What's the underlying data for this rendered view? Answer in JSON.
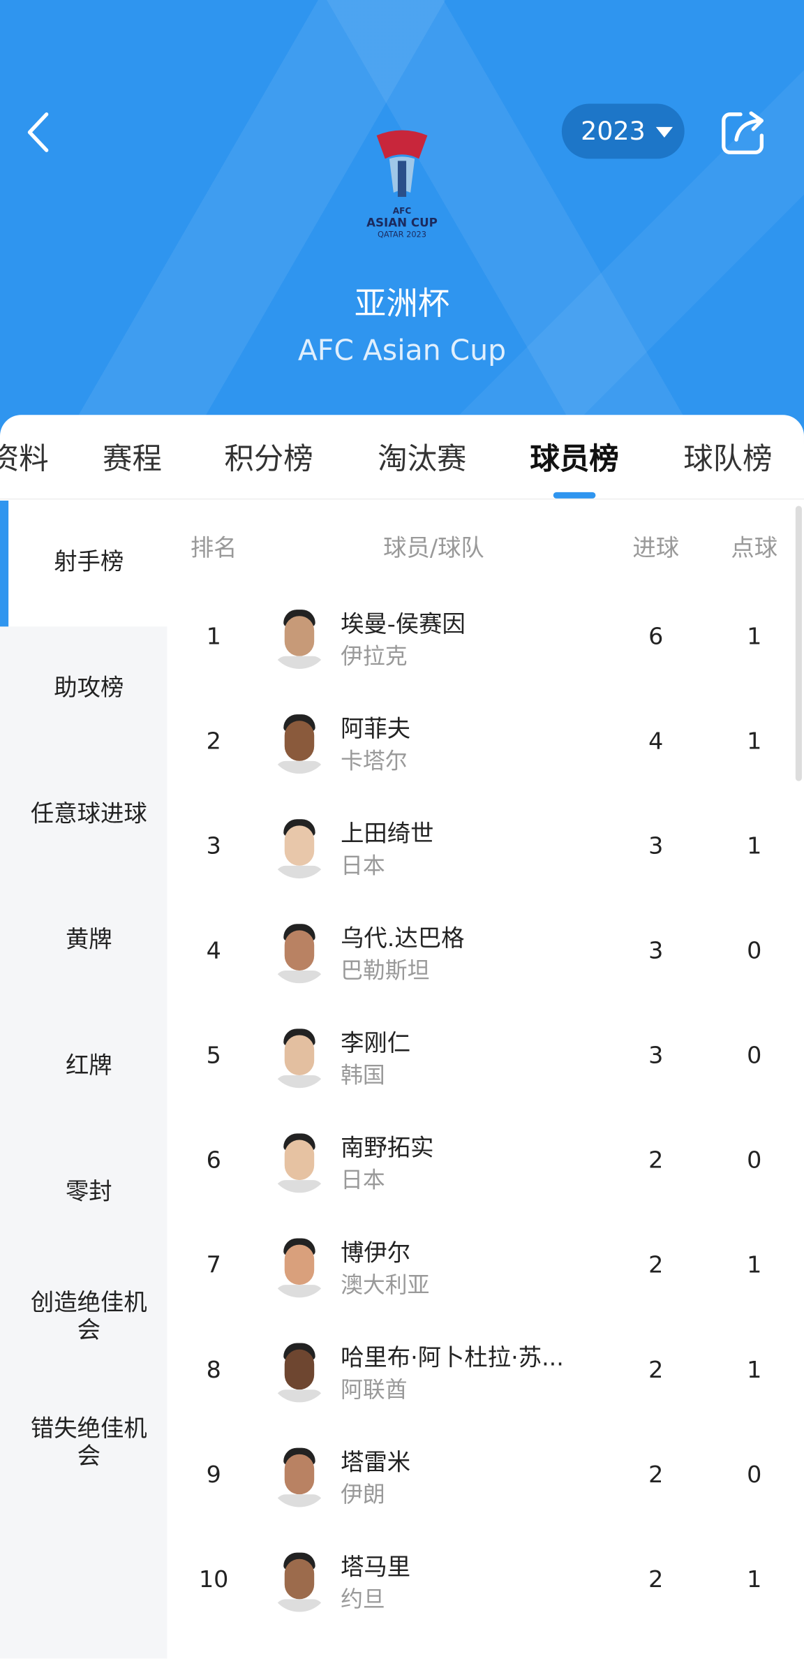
{
  "header": {
    "year": "2023",
    "logo": [
      "AFC",
      "ASIAN CUP",
      "QATAR 2023"
    ],
    "title": "亚洲杯",
    "subtitle": "AFC Asian Cup"
  },
  "tabs": {
    "items": [
      "资料",
      "赛程",
      "积分榜",
      "淘汰赛",
      "球员榜",
      "球队榜"
    ],
    "active": 4
  },
  "sidebar": {
    "items": [
      "射手榜",
      "助攻榜",
      "任意球进球",
      "黄牌",
      "红牌",
      "零封",
      "创造绝佳机会",
      "错失绝佳机会"
    ],
    "active": 0
  },
  "table": {
    "columns": [
      "排名",
      "球员/球队",
      "进球",
      "点球"
    ],
    "rows": [
      [
        "1",
        "埃曼-侯赛因",
        "伊拉克",
        "6",
        "1"
      ],
      [
        "2",
        "阿菲夫",
        "卡塔尔",
        "4",
        "1"
      ],
      [
        "3",
        "上田绮世",
        "日本",
        "3",
        "1"
      ],
      [
        "4",
        "乌代.达巴格",
        "巴勒斯坦",
        "3",
        "0"
      ],
      [
        "5",
        "李刚仁",
        "韩国",
        "3",
        "0"
      ],
      [
        "6",
        "南野拓实",
        "日本",
        "2",
        "0"
      ],
      [
        "7",
        "博伊尔",
        "澳大利亚",
        "2",
        "1"
      ],
      [
        "8",
        "哈里布·阿卜杜拉·苏...",
        "阿联酋",
        "2",
        "1"
      ],
      [
        "9",
        "塔雷米",
        "伊朗",
        "2",
        "0"
      ],
      [
        "10",
        "塔马里",
        "约旦",
        "2",
        "1"
      ]
    ]
  }
}
